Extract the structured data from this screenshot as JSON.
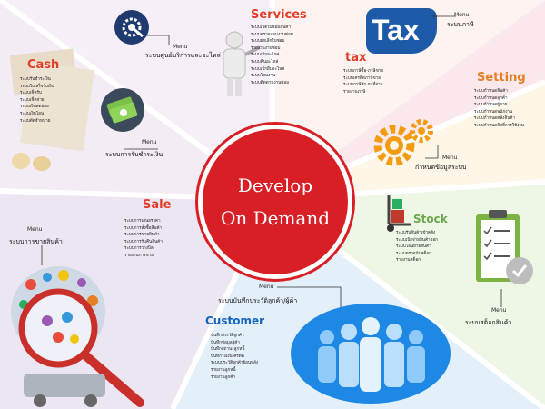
{
  "center": {
    "line1": "Develop",
    "line2": "On Demand"
  },
  "services": {
    "title": "Services",
    "menu": "Menu",
    "system": "ระบบศูนย์บริการและอะไหล่",
    "items": [
      "ระบบเปิดใบซ่อมสินค้า",
      "ระบบตรวจสอบงานซ่อม",
      "ระบบยกเลิกใบซ่อม",
      "รายงานงานซ่อม",
      "ระบบเบิกอะไหล่",
      "ระบบคืนอะไหล่",
      "ระบบเบิกยืมอะไหล่",
      "ระบบโอนงาน",
      "ระบบติดตามงานซ่อม"
    ]
  },
  "tax": {
    "title": "tax",
    "logo": "Tax",
    "menu": "Menu",
    "system": "ระบบภาษี",
    "items": [
      "ระบบภาษีซื้อ-ภาษีขาย",
      "ระบบเครดิตภาษีขาย",
      "ระบบภาษีหัก ณ ที่จ่าย",
      "รายงานภาษี"
    ]
  },
  "setting": {
    "title": "Setting",
    "menu": "Menu",
    "system": "กำหนดข้อมูลระบบ",
    "items": [
      "ระบบกำหนดสินค้า",
      "ระบบกำหนดลูกค้า",
      "ระบบกำหนดผู้ขาย",
      "ระบบกำหนดพนักงาน",
      "ระบบกำหนดคลังสินค้า",
      "ระบบกำหนดสิทธิ์การใช้งาน"
    ]
  },
  "cash": {
    "title": "Cash",
    "menu": "Menu",
    "system": "ระบบการรับชำระเงิน",
    "items": [
      "ระบบรับชำระเงิน",
      "ระบบใบเสร็จรับเงิน",
      "ระบบเช็ครับ",
      "ระบบเช็คจ่าย",
      "ระบบเงินสดย่อย",
      "ระบบเงินโอน",
      "ระบบตัดจำหน่าย"
    ]
  },
  "sale": {
    "title": "Sale",
    "menu": "Menu",
    "system": "ระบบการขายสินค้า",
    "items": [
      "ระบบการเสนอราคา",
      "ระบบการสั่งซื้อสินค้า",
      "ระบบการขายสินค้า",
      "ระบบการรับคืนสินค้า",
      "ระบบการวางบิล",
      "รายงานการขาย"
    ]
  },
  "stock": {
    "title": "Stock",
    "menu": "Menu",
    "system": "ระบบสต็อกสินค้า",
    "items": [
      "ระบบรับสินค้าเข้าคลัง",
      "ระบบเบิกจ่ายสินค้าออก",
      "ระบบโอนย้ายสินค้า",
      "ระบบตรวจนับสต็อก",
      "รายงานสต็อก"
    ]
  },
  "customer": {
    "title": "Customer",
    "menu": "Menu",
    "system": "ระบบบันทึกประวัติลูกค้า/ผู้ค้า",
    "items": [
      "บันทึกประวัติลูกค้า",
      "บันทึกข้อมูลผู้ค้า",
      "บันทึกสถานะลูกหนี้",
      "บันทึกวงเงินเครดิต",
      "",
      "ระบบประวัติลูกค้าย้อนหลัง",
      "รายงานลูกหนี้",
      "รายงานลูกค้า"
    ]
  },
  "colors": {
    "accent": "#d91f26",
    "navy": "#1f3a6e",
    "orange": "#f39c12",
    "green": "#7cb342",
    "blue": "#1565c0",
    "purple": "#7b3fa0"
  }
}
